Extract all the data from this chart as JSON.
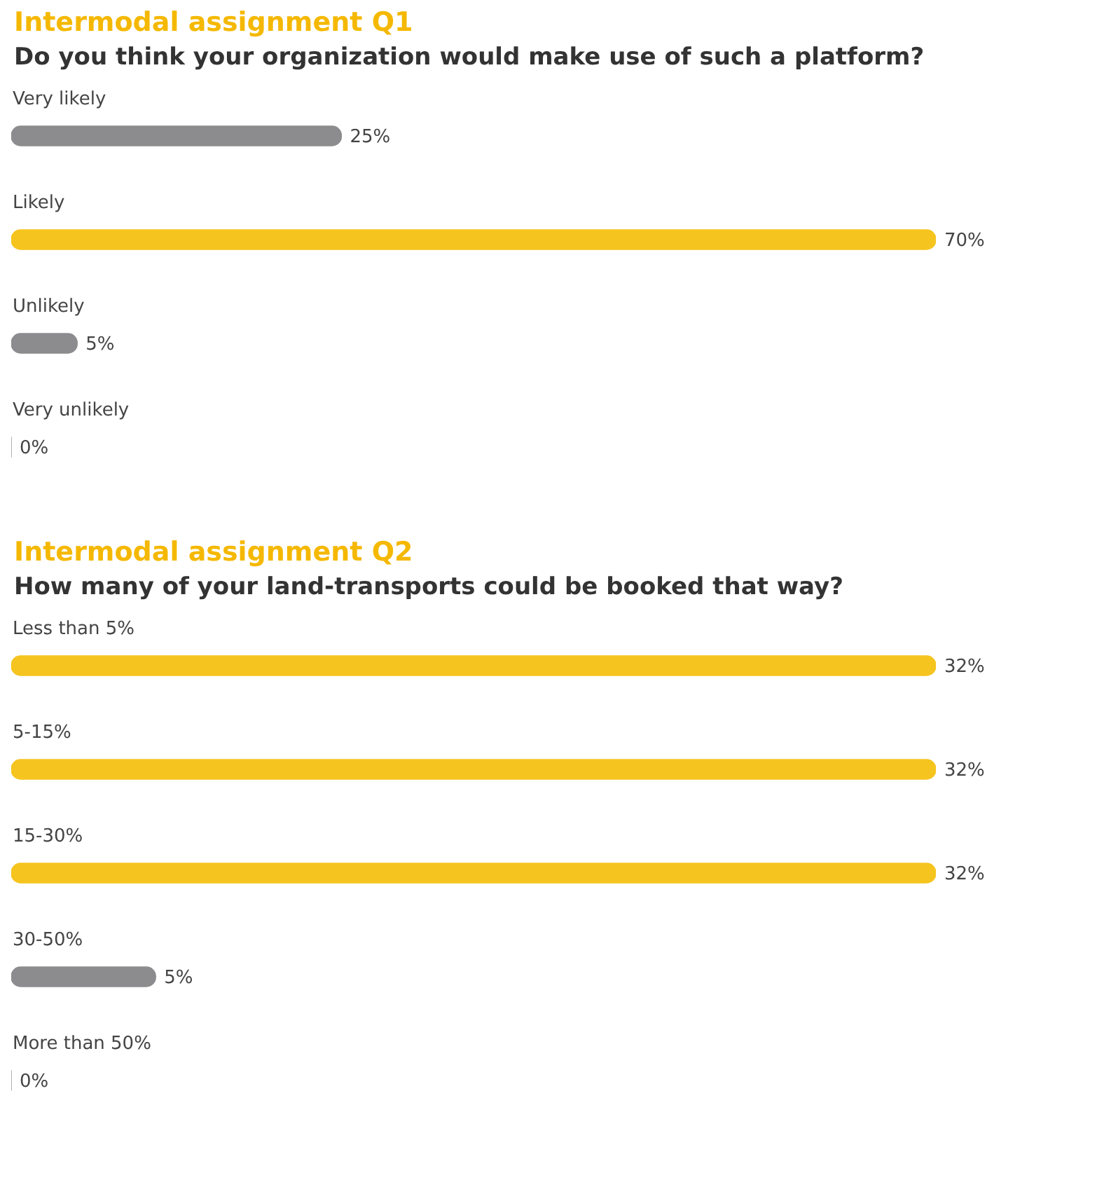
{
  "chart_data": [
    {
      "type": "bar",
      "orientation": "horizontal",
      "title": "Intermodal assignment Q1",
      "subtitle": "Do you think your organization would make use of such a platform?",
      "categories": [
        "Very likely",
        "Likely",
        "Unlikely",
        "Very unlikely"
      ],
      "values": [
        25,
        70,
        5,
        0
      ],
      "colors": [
        "#8c8c8e",
        "#f5c41e",
        "#8c8c8e",
        "#8c8c8e"
      ],
      "xlim": [
        0,
        70
      ],
      "data_labels": true,
      "value_labels": [
        "25%",
        "70%",
        "5%",
        "0%"
      ],
      "tick_labels": false
    },
    {
      "type": "bar",
      "orientation": "horizontal",
      "title": "Intermodal assignment Q2",
      "subtitle": "How many of your land-transports could be booked that way?",
      "categories": [
        "Less than 5%",
        "5-15%",
        "15-30%",
        "30-50%",
        "More than 50%"
      ],
      "values": [
        32,
        32,
        32,
        5,
        0
      ],
      "colors": [
        "#f5c41e",
        "#f5c41e",
        "#f5c41e",
        "#8c8c8e",
        "#8c8c8e"
      ],
      "xlim": [
        0,
        32
      ],
      "data_labels": true,
      "value_labels": [
        "32%",
        "32%",
        "32%",
        "5%",
        "0%"
      ],
      "tick_labels": false
    }
  ]
}
